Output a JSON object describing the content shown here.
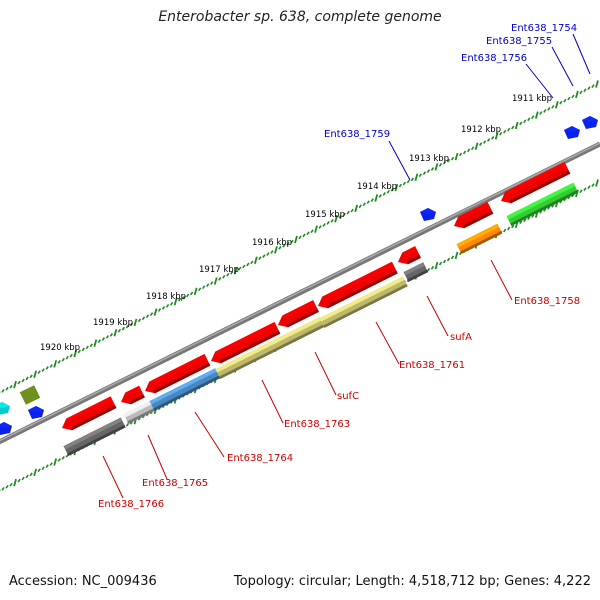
{
  "title": "Enterobacter sp. 638, complete genome",
  "footer": {
    "accession": "Accession: NC_009436",
    "topology": "Topology: circular; Length: 4,518,712 bp; Genes: 4,222"
  },
  "kbp_labels": [
    "1911 kbp",
    "1912 kbp",
    "1913 kbp",
    "1914 kbp",
    "1915 kbp",
    "1916 kbp",
    "1917 kbp",
    "1918 kbp",
    "1919 kbp",
    "1920 kbp"
  ],
  "gene_labels": [
    {
      "text": "Ent638_1754",
      "color": "#0000cc"
    },
    {
      "text": "Ent638_1755",
      "color": "#0000cc"
    },
    {
      "text": "Ent638_1756",
      "color": "#0000cc"
    },
    {
      "text": "Ent638_1759",
      "color": "#0000cc"
    },
    {
      "text": "Ent638_1758",
      "color": "#cc0000"
    },
    {
      "text": "sufA",
      "color": "#cc0000"
    },
    {
      "text": "Ent638_1761",
      "color": "#cc0000"
    },
    {
      "text": "sufC",
      "color": "#cc0000"
    },
    {
      "text": "Ent638_1763",
      "color": "#cc0000"
    },
    {
      "text": "Ent638_1764",
      "color": "#cc0000"
    },
    {
      "text": "Ent638_1765",
      "color": "#cc0000"
    },
    {
      "text": "Ent638_1766",
      "color": "#cc0000"
    }
  ],
  "colors": {
    "cds": "#ee0000",
    "backbone": "#777777",
    "tick": "#1f8a1f",
    "blue_feature": "#0b1fee",
    "green_feature": "#33cc33",
    "orange_feature": "#ff8800",
    "olive_feature": "#bdb86a",
    "steel_feature": "#4a86c0",
    "gray_feature": "#666666",
    "lightgray_feature": "#bbbbbb",
    "cyan_feature": "#00cccc",
    "darkolive_feature": "#6f8f1f"
  }
}
